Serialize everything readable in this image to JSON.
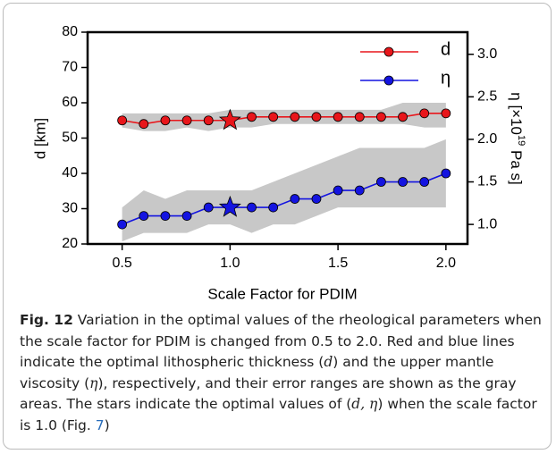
{
  "chart_data": {
    "type": "line",
    "x_label": "Scale Factor for PDIM",
    "y_label": "d [km]",
    "y2_label": [
      "η [×10",
      "19",
      " Pa s]"
    ],
    "x": [
      0.5,
      0.6,
      0.7,
      0.8,
      0.9,
      1.0,
      1.1,
      1.2,
      1.3,
      1.4,
      1.5,
      1.6,
      1.7,
      1.8,
      1.9,
      2.0
    ],
    "xlim": [
      0.34,
      2.1
    ],
    "xticks": [
      {
        "value": 0.5,
        "label": "0.5"
      },
      {
        "value": 1.0,
        "label": "1.0"
      },
      {
        "value": 1.5,
        "label": "1.5"
      },
      {
        "value": 2.0,
        "label": "2.0"
      }
    ],
    "ylim": [
      20,
      80
    ],
    "yticks": [
      20,
      30,
      40,
      50,
      60,
      70,
      80
    ],
    "y2lim": [
      0.77,
      3.26
    ],
    "y2ticks": [
      {
        "value": 1.0,
        "label": "1.0"
      },
      {
        "value": 1.5,
        "label": "1.5"
      },
      {
        "value": 2.0,
        "label": "2.0"
      },
      {
        "value": 2.5,
        "label": "2.5"
      },
      {
        "value": 3.0,
        "label": "3.0"
      }
    ],
    "legend": "upper right",
    "band_color": "#c8c8c8",
    "series": [
      {
        "name": "d",
        "color": "#e8161b",
        "values": [
          55,
          54,
          55,
          55,
          55,
          55,
          56,
          56,
          56,
          56,
          56,
          56,
          56,
          56,
          57,
          57
        ],
        "band_upper": [
          57,
          57,
          57,
          57,
          57,
          58,
          58,
          58,
          58,
          58,
          58,
          58,
          58,
          60,
          60,
          60
        ],
        "band_lower": [
          53,
          52,
          52,
          53,
          52,
          53,
          53,
          54,
          54,
          54,
          54,
          54,
          54,
          54,
          53,
          53
        ],
        "star_x": 1.0,
        "star_value": 55
      },
      {
        "name": "η",
        "color": "#1414e0",
        "axis": "y2",
        "values": [
          1.0,
          1.1,
          1.1,
          1.1,
          1.2,
          1.2,
          1.2,
          1.2,
          1.3,
          1.3,
          1.4,
          1.4,
          1.5,
          1.5,
          1.5,
          1.6
        ],
        "band_upper": [
          1.2,
          1.4,
          1.3,
          1.4,
          1.4,
          1.4,
          1.4,
          1.5,
          1.6,
          1.7,
          1.8,
          1.9,
          1.9,
          1.9,
          1.9,
          2.0
        ],
        "band_lower": [
          0.8,
          0.9,
          0.9,
          0.9,
          1.0,
          1.0,
          0.9,
          1.0,
          1.0,
          1.1,
          1.2,
          1.2,
          1.2,
          1.2,
          1.2,
          1.2
        ],
        "star_x": 1.0,
        "star_value": 1.2
      }
    ]
  },
  "caption": {
    "label": "Fig. 12",
    "segments": [
      " Variation in the optimal values of the rheological parameters when the scale factor for PDIM is changed from 0.5 to 2.0. Red and blue lines indicate the optimal lithospheric thickness (",
      "d",
      ") and the upper mantle viscosity (",
      "η",
      "), respectively, and their error ranges are shown as the gray areas. The stars indicate the optimal values of (",
      "d, η",
      ") when the scale factor is 1.0 (Fig. ",
      "7",
      ")"
    ]
  }
}
